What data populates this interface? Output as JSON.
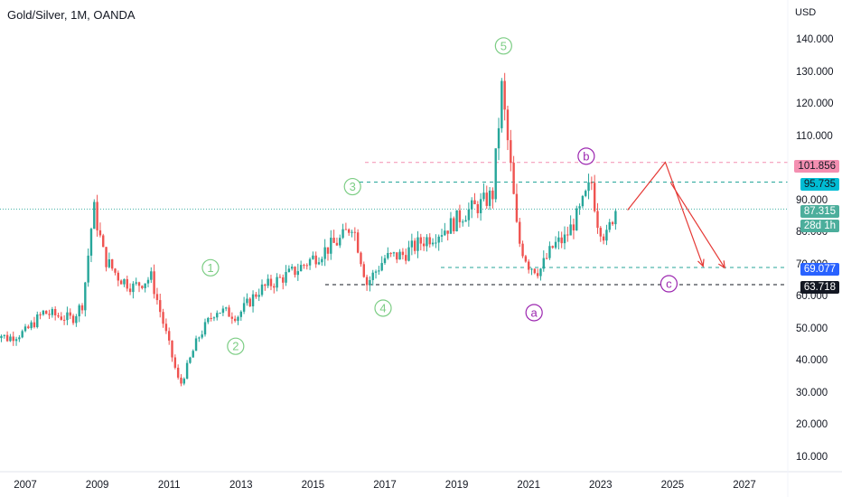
{
  "header": {
    "title": "Gold/Silver, 1M, OANDA",
    "currency": "USD"
  },
  "colors": {
    "up": "#26a69a",
    "down": "#ef5350",
    "wave_green": "#7ccd84",
    "wave_purple": "#9c27b0",
    "projection": "#e53935"
  },
  "price_tags": {
    "b_level": {
      "label": "101.856",
      "bg": "#f48fb1",
      "fg": "#131722"
    },
    "resistance": {
      "label": "95.735",
      "bg": "#00bcd4",
      "fg": "#131722"
    },
    "last_price": {
      "label": "87.315",
      "bg": "#4cae9c",
      "fg": "#ffffff"
    },
    "countdown": {
      "label": "28d 1h",
      "bg": "#4cae9c",
      "fg": "#ffffff"
    },
    "support": {
      "label": "69.077",
      "bg": "#2962ff",
      "fg": "#ffffff"
    },
    "c_level": {
      "label": "63.718",
      "bg": "#131722",
      "fg": "#ffffff"
    }
  },
  "chart_data": {
    "type": "candlestick",
    "title": "Gold/Silver, 1M, OANDA",
    "ylabel": "USD",
    "y_ticks": [
      10,
      20,
      30,
      40,
      50,
      60,
      70,
      80,
      90,
      100,
      110,
      120,
      130,
      140
    ],
    "y_tick_labels": [
      "10.000",
      "20.000",
      "30.000",
      "40.000",
      "50.000",
      "60.000",
      "70.000",
      "80.000",
      "90.000",
      "100.000",
      "110.000",
      "120.000",
      "130.000",
      "140.000"
    ],
    "ylim": [
      5,
      150
    ],
    "x_ticks": [
      2007,
      2009,
      2011,
      2013,
      2015,
      2017,
      2019,
      2021,
      2023,
      2025,
      2027
    ],
    "x_tick_labels": [
      "2007",
      "2009",
      "2011",
      "2013",
      "2015",
      "2017",
      "2019",
      "2021",
      "2023",
      "2025",
      "2027"
    ],
    "xlim": [
      2005.9,
      2028.9
    ],
    "price_path": [
      [
        2006.0,
        50
      ],
      [
        2006.5,
        47
      ],
      [
        2007.0,
        49
      ],
      [
        2007.5,
        55
      ],
      [
        2008.3,
        53
      ],
      [
        2008.6,
        58
      ],
      [
        2008.9,
        88
      ],
      [
        2009.2,
        72
      ],
      [
        2009.6,
        66
      ],
      [
        2010.0,
        63
      ],
      [
        2010.5,
        66
      ],
      [
        2010.9,
        49
      ],
      [
        2011.3,
        32
      ],
      [
        2011.8,
        47
      ],
      [
        2012.3,
        56
      ],
      [
        2012.9,
        54
      ],
      [
        2013.5,
        62
      ],
      [
        2014.5,
        68
      ],
      [
        2015.0,
        72
      ],
      [
        2015.8,
        78
      ],
      [
        2016.1,
        83
      ],
      [
        2016.5,
        64
      ],
      [
        2017.0,
        72
      ],
      [
        2017.5,
        73
      ],
      [
        2018.0,
        77
      ],
      [
        2018.8,
        82
      ],
      [
        2019.2,
        86
      ],
      [
        2019.7,
        89
      ],
      [
        2020.0,
        92
      ],
      [
        2020.25,
        125
      ],
      [
        2020.5,
        100
      ],
      [
        2020.7,
        78
      ],
      [
        2021.0,
        70
      ],
      [
        2021.3,
        68
      ],
      [
        2021.7,
        76
      ],
      [
        2022.0,
        78
      ],
      [
        2022.4,
        86
      ],
      [
        2022.75,
        95.7
      ],
      [
        2022.9,
        84
      ],
      [
        2023.15,
        78
      ],
      [
        2023.4,
        87.3
      ]
    ],
    "horizontal_levels": [
      {
        "value": 101.856,
        "style": "dashed",
        "color": "#f48fb1",
        "label": "101.856"
      },
      {
        "value": 95.735,
        "style": "dashed",
        "color": "#26a69a",
        "label": "95.735"
      },
      {
        "value": 87.315,
        "style": "dotted",
        "color": "#26a69a",
        "label": "87.315"
      },
      {
        "value": 69.077,
        "style": "dashed",
        "color": "#26a69a",
        "label": "69.077"
      },
      {
        "value": 63.718,
        "style": "dashed",
        "color": "#131722",
        "label": "63.718"
      }
    ],
    "wave_labels": [
      {
        "text": "1",
        "x": 2012.15,
        "y": 69.0,
        "color": "#7ccd84"
      },
      {
        "text": "2",
        "x": 2012.85,
        "y": 44.5,
        "color": "#7ccd84"
      },
      {
        "text": "3",
        "x": 2016.1,
        "y": 94.3,
        "color": "#7ccd84"
      },
      {
        "text": "4",
        "x": 2016.95,
        "y": 56.4,
        "color": "#7ccd84"
      },
      {
        "text": "5",
        "x": 2020.3,
        "y": 138.2,
        "color": "#7ccd84"
      },
      {
        "text": "a",
        "x": 2021.15,
        "y": 55.0,
        "color": "#9c27b0"
      },
      {
        "text": "b",
        "x": 2022.6,
        "y": 103.8,
        "color": "#9c27b0"
      },
      {
        "text": "c",
        "x": 2024.9,
        "y": 64.0,
        "color": "#9c27b0"
      }
    ],
    "projection": {
      "path": [
        [
          2023.75,
          87
        ],
        [
          2024.8,
          101.9
        ],
        [
          2025.85,
          69.5
        ]
      ],
      "second_arrow": [
        [
          2024.95,
          95.5
        ],
        [
          2026.45,
          69.0
        ]
      ]
    }
  }
}
